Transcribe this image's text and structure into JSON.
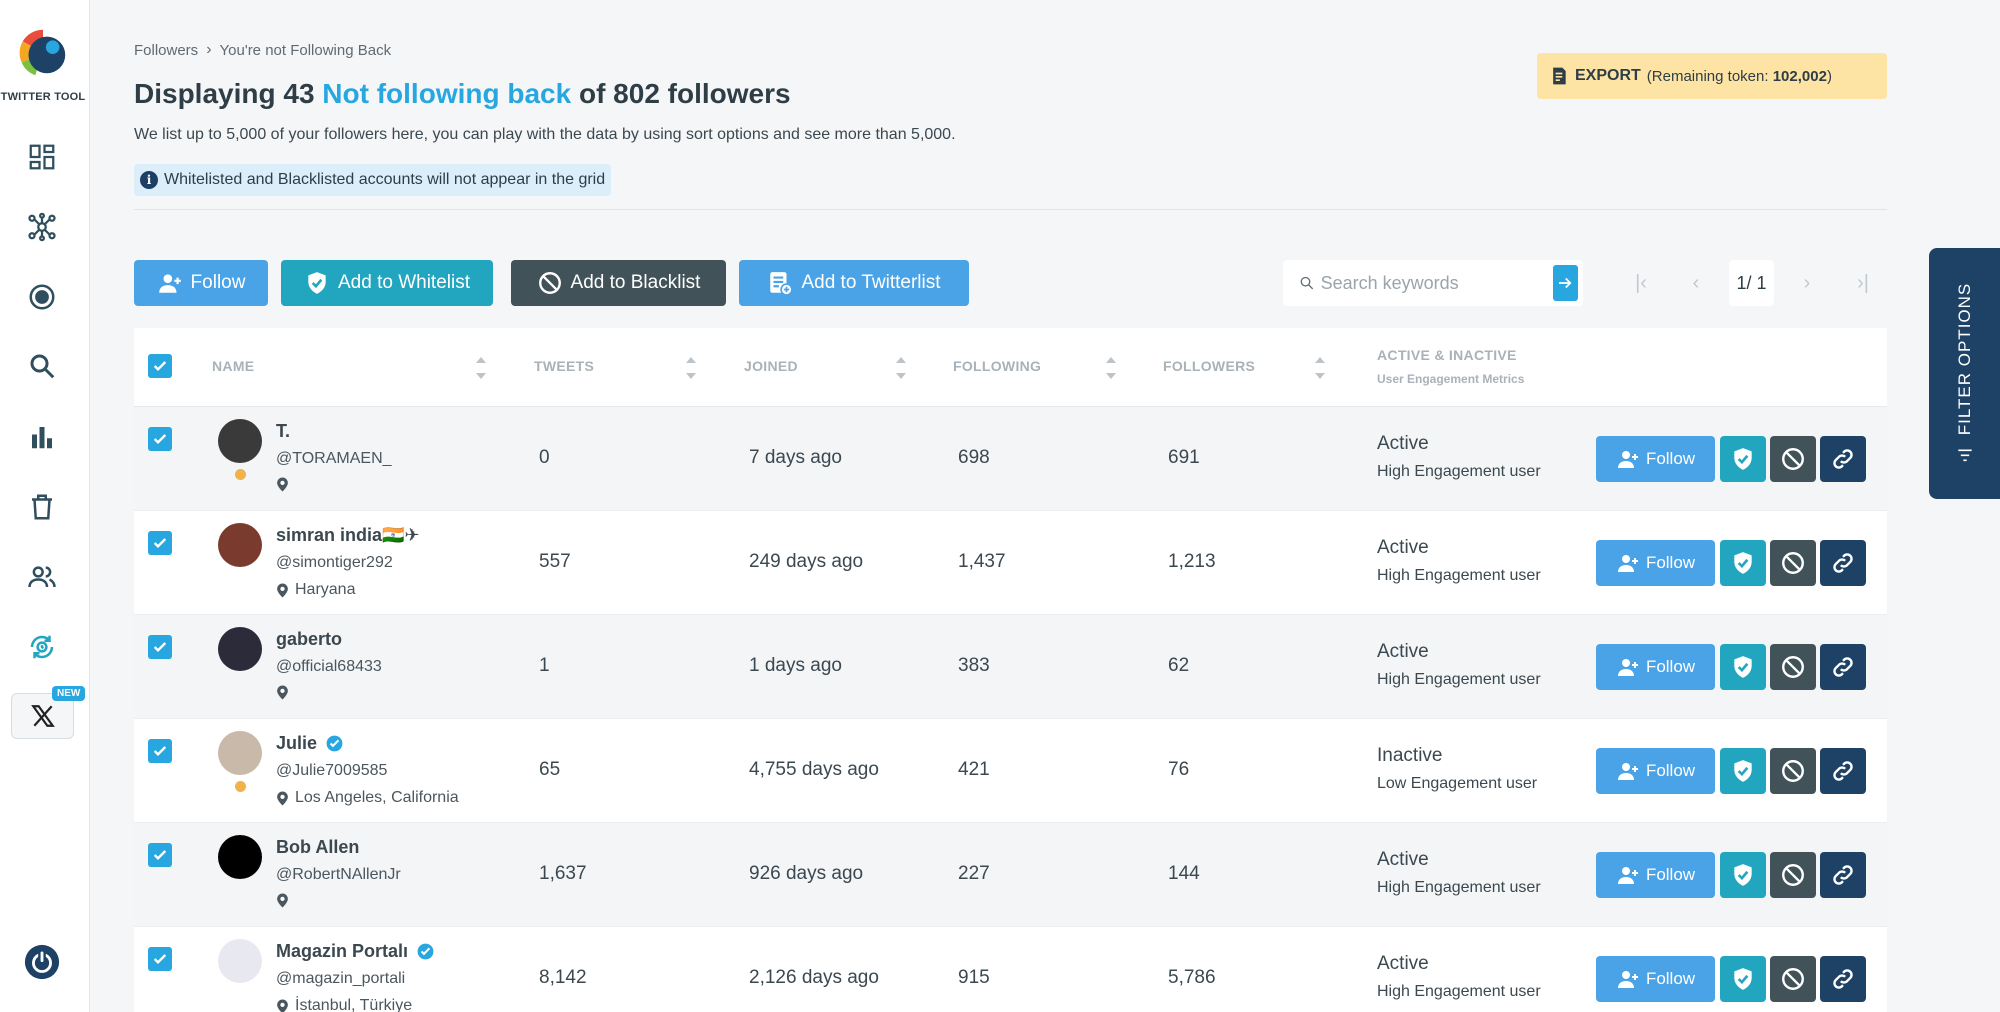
{
  "sidebar": {
    "logo_text": "TWITTER TOOL",
    "new_badge": "NEW",
    "nav": [
      "dashboard",
      "network",
      "target",
      "search",
      "analytics",
      "trash",
      "users",
      "sync",
      "x"
    ]
  },
  "breadcrumb": {
    "root": "Followers",
    "current": "You're not Following Back"
  },
  "title": {
    "prefix": "Displaying 43 ",
    "highlight": "Not following back",
    "suffix": " of 802 followers"
  },
  "subtitle": "We list up to 5,000 of your followers here, you can play with the data by using sort options and see more than 5,000.",
  "info_note": "Whitelisted and Blacklisted accounts will not appear in the grid",
  "export": {
    "label": "EXPORT",
    "token_prefix": "(Remaining token: ",
    "token_value": "102,002",
    "token_suffix": ")"
  },
  "toolbar": {
    "follow": "Follow",
    "whitelist": "Add to Whitelist",
    "blacklist": "Add to Blacklist",
    "twitterlist": "Add to Twitterlist"
  },
  "search": {
    "placeholder": "Search keywords"
  },
  "pager": {
    "current": "1/ 1"
  },
  "table": {
    "headers": {
      "name": "NAME",
      "tweets": "TWEETS",
      "joined": "JOINED",
      "following": "FOLLOWING",
      "followers": "FOLLOWERS",
      "activity": "ACTIVE & INACTIVE",
      "activity_sub": "User Engagement Metrics"
    },
    "row_follow_label": "Follow",
    "rows": [
      {
        "name": "T.",
        "handle": "@TORAMAEN_",
        "location": "",
        "verified": false,
        "tweets": "0",
        "joined": "7 days ago",
        "following": "698",
        "followers": "691",
        "status": "Active",
        "engagement": "High Engagement user"
      },
      {
        "name": "simran india🇮🇳✈",
        "handle": "@simontiger292",
        "location": "Haryana",
        "verified": false,
        "tweets": "557",
        "joined": "249 days ago",
        "following": "1,437",
        "followers": "1,213",
        "status": "Active",
        "engagement": "High Engagement user"
      },
      {
        "name": "gaberto",
        "handle": "@official68433",
        "location": "",
        "verified": false,
        "tweets": "1",
        "joined": "1 days ago",
        "following": "383",
        "followers": "62",
        "status": "Active",
        "engagement": "High Engagement user"
      },
      {
        "name": "Julie",
        "handle": "@Julie7009585",
        "location": "Los Angeles, California",
        "verified": true,
        "tweets": "65",
        "joined": "4,755 days ago",
        "following": "421",
        "followers": "76",
        "status": "Inactive",
        "engagement": "Low Engagement user"
      },
      {
        "name": "Bob Allen",
        "handle": "@RobertNAllenJr",
        "location": "",
        "verified": false,
        "tweets": "1,637",
        "joined": "926 days ago",
        "following": "227",
        "followers": "144",
        "status": "Active",
        "engagement": "High Engagement user"
      },
      {
        "name": "Magazin Portalı",
        "handle": "@magazin_portali",
        "location": "İstanbul, Türkiye",
        "verified": true,
        "tweets": "8,142",
        "joined": "2,126 days ago",
        "following": "915",
        "followers": "5,786",
        "status": "Active",
        "engagement": "High Engagement user"
      }
    ]
  },
  "filter_tab": "FILTER OPTIONS",
  "colors": {
    "accent": "#27a6e0",
    "teal": "#22a6c0",
    "dark": "#415258",
    "navy": "#1d4266",
    "export_bg": "#fde3a4"
  }
}
